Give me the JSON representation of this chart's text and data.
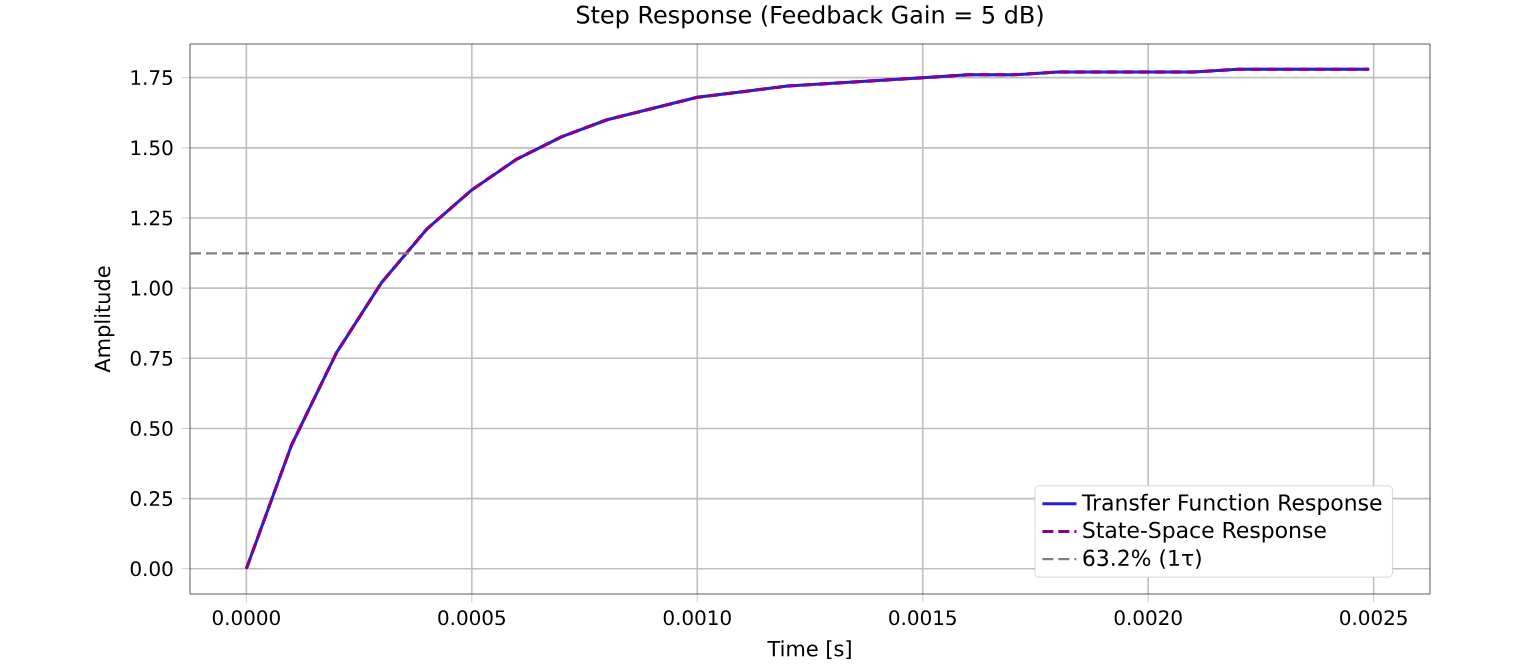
{
  "chart_data": {
    "type": "line",
    "title": "Step Response (Feedback Gain = 5 dB)",
    "xlabel": "Time [s]",
    "ylabel": "Amplitude",
    "x": [
      0,
      0.0001,
      0.0002,
      0.0003,
      0.0004,
      0.0005,
      0.0006,
      0.0007,
      0.0008,
      0.0009,
      0.001,
      0.0011,
      0.0012,
      0.0013,
      0.0014,
      0.0015,
      0.0016,
      0.0017,
      0.0018,
      0.0019,
      0.002,
      0.0021,
      0.0022,
      0.0023,
      0.0024,
      0.00249
    ],
    "series": [
      {
        "name": "Transfer Function Response",
        "color": "#1f1fe6",
        "line_style": "solid",
        "values": [
          0,
          0.44,
          0.77,
          1.02,
          1.21,
          1.35,
          1.46,
          1.54,
          1.6,
          1.64,
          1.68,
          1.7,
          1.72,
          1.73,
          1.74,
          1.75,
          1.76,
          1.76,
          1.77,
          1.77,
          1.77,
          1.77,
          1.78,
          1.78,
          1.78,
          1.78
        ]
      },
      {
        "name": "State-Space Response",
        "color": "#8b008b",
        "line_style": "dashed",
        "values": [
          0,
          0.44,
          0.77,
          1.02,
          1.21,
          1.35,
          1.46,
          1.54,
          1.6,
          1.64,
          1.68,
          1.7,
          1.72,
          1.73,
          1.74,
          1.75,
          1.76,
          1.76,
          1.77,
          1.77,
          1.77,
          1.77,
          1.78,
          1.78,
          1.78,
          1.78
        ]
      }
    ],
    "ref_lines": [
      {
        "axis": "y",
        "value": 1.124,
        "label": "63.2% (1τ)",
        "color": "#808080",
        "line_style": "dashed"
      }
    ],
    "xlim": [
      -0.000125,
      0.002625
    ],
    "ylim": [
      -0.09,
      1.87
    ],
    "xticks": [
      {
        "value": 0,
        "label": "0.0000"
      },
      {
        "value": 0.0005,
        "label": "0.0005"
      },
      {
        "value": 0.001,
        "label": "0.0010"
      },
      {
        "value": 0.0015,
        "label": "0.0015"
      },
      {
        "value": 0.002,
        "label": "0.0020"
      },
      {
        "value": 0.0025,
        "label": "0.0025"
      }
    ],
    "yticks": [
      {
        "value": 0,
        "label": "0.00"
      },
      {
        "value": 0.25,
        "label": "0.25"
      },
      {
        "value": 0.5,
        "label": "0.50"
      },
      {
        "value": 0.75,
        "label": "0.75"
      },
      {
        "value": 1.0,
        "label": "1.00"
      },
      {
        "value": 1.25,
        "label": "1.25"
      },
      {
        "value": 1.5,
        "label": "1.50"
      },
      {
        "value": 1.75,
        "label": "1.75"
      }
    ],
    "grid": true,
    "legend": "bottom right"
  }
}
